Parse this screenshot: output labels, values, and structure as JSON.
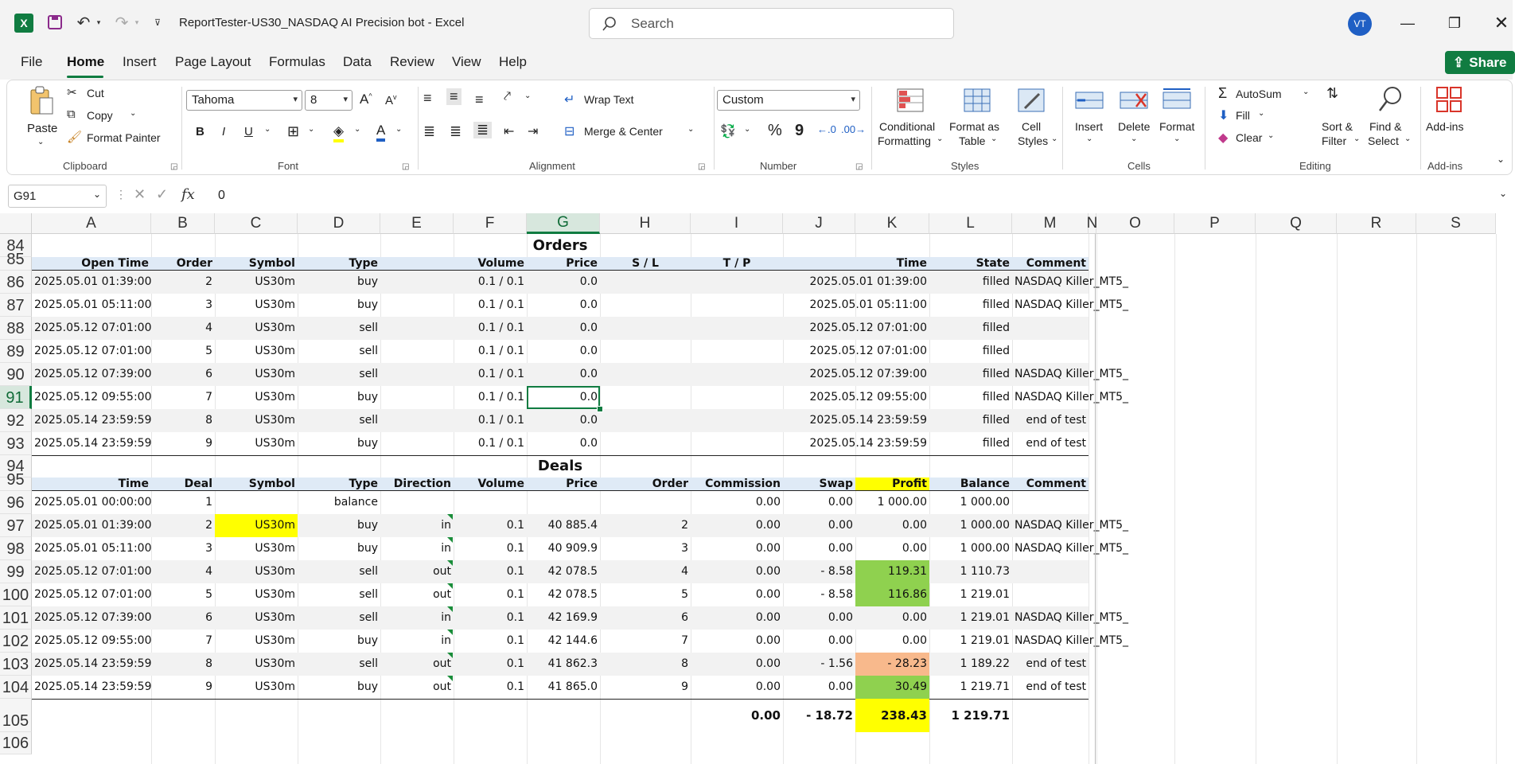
{
  "app": {
    "title": "ReportTester-US30_NASDAQ AI Precision bot  -  Excel",
    "search_placeholder": "Search",
    "avatar_initials": "VT",
    "accent": "#107c41"
  },
  "menu": {
    "items": [
      "File",
      "Home",
      "Insert",
      "Page Layout",
      "Formulas",
      "Data",
      "Review",
      "View",
      "Help"
    ],
    "share_label": "Share"
  },
  "ribbon": {
    "clipboard": {
      "paste": "Paste",
      "cut": "Cut",
      "copy": "Copy",
      "format_painter": "Format Painter",
      "label": "Clipboard"
    },
    "font": {
      "family": "Tahoma",
      "size": "8",
      "bold": "B",
      "italic": "I",
      "underline": "U",
      "label": "Font"
    },
    "alignment": {
      "wrap": "Wrap Text",
      "merge": "Merge & Center",
      "label": "Alignment"
    },
    "number": {
      "format": "Custom",
      "percent": "%",
      "comma": "9",
      "label": "Number"
    },
    "styles": {
      "conditional": "Conditional",
      "conditional2": "Formatting",
      "format_as": "Format as",
      "table": "Table",
      "cell": "Cell",
      "styles_word": "Styles",
      "label": "Styles"
    },
    "cells": {
      "insert": "Insert",
      "delete": "Delete",
      "format": "Format",
      "label": "Cells"
    },
    "editing": {
      "autosum": "AutoSum",
      "fill": "Fill",
      "clear": "Clear",
      "sort": "Sort &",
      "filter": "Filter",
      "find": "Find &",
      "select": "Select",
      "label": "Editing"
    },
    "addins": {
      "name": "Add-ins",
      "label": "Add-ins"
    }
  },
  "formula_bar": {
    "name_box": "G91",
    "value": "0"
  },
  "columns": [
    "A",
    "B",
    "C",
    "D",
    "E",
    "F",
    "G",
    "H",
    "I",
    "J",
    "K",
    "L",
    "M",
    "N",
    "O",
    "P",
    "Q",
    "R",
    "S"
  ],
  "selected_column": "G",
  "selected_row": "91",
  "rows": [
    "84",
    "85",
    "86",
    "87",
    "88",
    "89",
    "90",
    "91",
    "92",
    "93",
    "94",
    "95",
    "96",
    "97",
    "98",
    "99",
    "100",
    "101",
    "102",
    "103",
    "104",
    "105",
    "106"
  ],
  "orders": {
    "title": "Orders",
    "headers": [
      "Open Time",
      "Order",
      "Symbol",
      "Type",
      "Volume",
      "Price",
      "S / L",
      "T / P",
      "Time",
      "State",
      "Comment"
    ],
    "rows": [
      [
        "2025.05.01 01:39:00",
        "2",
        "US30m",
        "buy",
        "0.1 / 0.1",
        "0.0",
        "",
        "",
        "2025.05.01 01:39:00",
        "filled",
        "NASDAQ Killer_MT5_"
      ],
      [
        "2025.05.01 05:11:00",
        "3",
        "US30m",
        "buy",
        "0.1 / 0.1",
        "0.0",
        "",
        "",
        "2025.05.01 05:11:00",
        "filled",
        "NASDAQ Killer_MT5_"
      ],
      [
        "2025.05.12 07:01:00",
        "4",
        "US30m",
        "sell",
        "0.1 / 0.1",
        "0.0",
        "",
        "",
        "2025.05.12 07:01:00",
        "filled",
        ""
      ],
      [
        "2025.05.12 07:01:00",
        "5",
        "US30m",
        "sell",
        "0.1 / 0.1",
        "0.0",
        "",
        "",
        "2025.05.12 07:01:00",
        "filled",
        ""
      ],
      [
        "2025.05.12 07:39:00",
        "6",
        "US30m",
        "sell",
        "0.1 / 0.1",
        "0.0",
        "",
        "",
        "2025.05.12 07:39:00",
        "filled",
        "NASDAQ Killer_MT5_"
      ],
      [
        "2025.05.12 09:55:00",
        "7",
        "US30m",
        "buy",
        "0.1 / 0.1",
        "0.0",
        "",
        "",
        "2025.05.12 09:55:00",
        "filled",
        "NASDAQ Killer_MT5_"
      ],
      [
        "2025.05.14 23:59:59",
        "8",
        "US30m",
        "sell",
        "0.1 / 0.1",
        "0.0",
        "",
        "",
        "2025.05.14 23:59:59",
        "filled",
        "end of test"
      ],
      [
        "2025.05.14 23:59:59",
        "9",
        "US30m",
        "buy",
        "0.1 / 0.1",
        "0.0",
        "",
        "",
        "2025.05.14 23:59:59",
        "filled",
        "end of test"
      ]
    ]
  },
  "deals": {
    "title": "Deals",
    "headers": [
      "Time",
      "Deal",
      "Symbol",
      "Type",
      "Direction",
      "Volume",
      "Price",
      "Order",
      "Commission",
      "Swap",
      "Profit",
      "Balance",
      "Comment"
    ],
    "rows": [
      [
        "2025.05.01 00:00:00",
        "1",
        "",
        "balance",
        "",
        "",
        "",
        "",
        "0.00",
        "0.00",
        "1 000.00",
        "1 000.00",
        ""
      ],
      [
        "2025.05.01 01:39:00",
        "2",
        "US30m",
        "buy",
        "in",
        "0.1",
        "40 885.4",
        "2",
        "0.00",
        "0.00",
        "0.00",
        "1 000.00",
        "NASDAQ Killer_MT5_"
      ],
      [
        "2025.05.01 05:11:00",
        "3",
        "US30m",
        "buy",
        "in",
        "0.1",
        "40 909.9",
        "3",
        "0.00",
        "0.00",
        "0.00",
        "1 000.00",
        "NASDAQ Killer_MT5_"
      ],
      [
        "2025.05.12 07:01:00",
        "4",
        "US30m",
        "sell",
        "out",
        "0.1",
        "42 078.5",
        "4",
        "0.00",
        "- 8.58",
        "119.31",
        "1 110.73",
        ""
      ],
      [
        "2025.05.12 07:01:00",
        "5",
        "US30m",
        "sell",
        "out",
        "0.1",
        "42 078.5",
        "5",
        "0.00",
        "- 8.58",
        "116.86",
        "1 219.01",
        ""
      ],
      [
        "2025.05.12 07:39:00",
        "6",
        "US30m",
        "sell",
        "in",
        "0.1",
        "42 169.9",
        "6",
        "0.00",
        "0.00",
        "0.00",
        "1 219.01",
        "NASDAQ Killer_MT5_"
      ],
      [
        "2025.05.12 09:55:00",
        "7",
        "US30m",
        "buy",
        "in",
        "0.1",
        "42 144.6",
        "7",
        "0.00",
        "0.00",
        "0.00",
        "1 219.01",
        "NASDAQ Killer_MT5_"
      ],
      [
        "2025.05.14 23:59:59",
        "8",
        "US30m",
        "sell",
        "out",
        "0.1",
        "41 862.3",
        "8",
        "0.00",
        "- 1.56",
        "- 28.23",
        "1 189.22",
        "end of test"
      ],
      [
        "2025.05.14 23:59:59",
        "9",
        "US30m",
        "buy",
        "out",
        "0.1",
        "41 865.0",
        "9",
        "0.00",
        "0.00",
        "30.49",
        "1 219.71",
        "end of test"
      ]
    ],
    "profit_colors": [
      "",
      "",
      "",
      "green",
      "green",
      "",
      "",
      "orange",
      "green"
    ],
    "totals": {
      "commission": "0.00",
      "swap": "- 18.72",
      "profit": "238.43",
      "balance": "1 219.71"
    }
  },
  "colors": {
    "yellow": "#ffff00",
    "green": "#8fd14f",
    "orange": "#f8b98c"
  }
}
